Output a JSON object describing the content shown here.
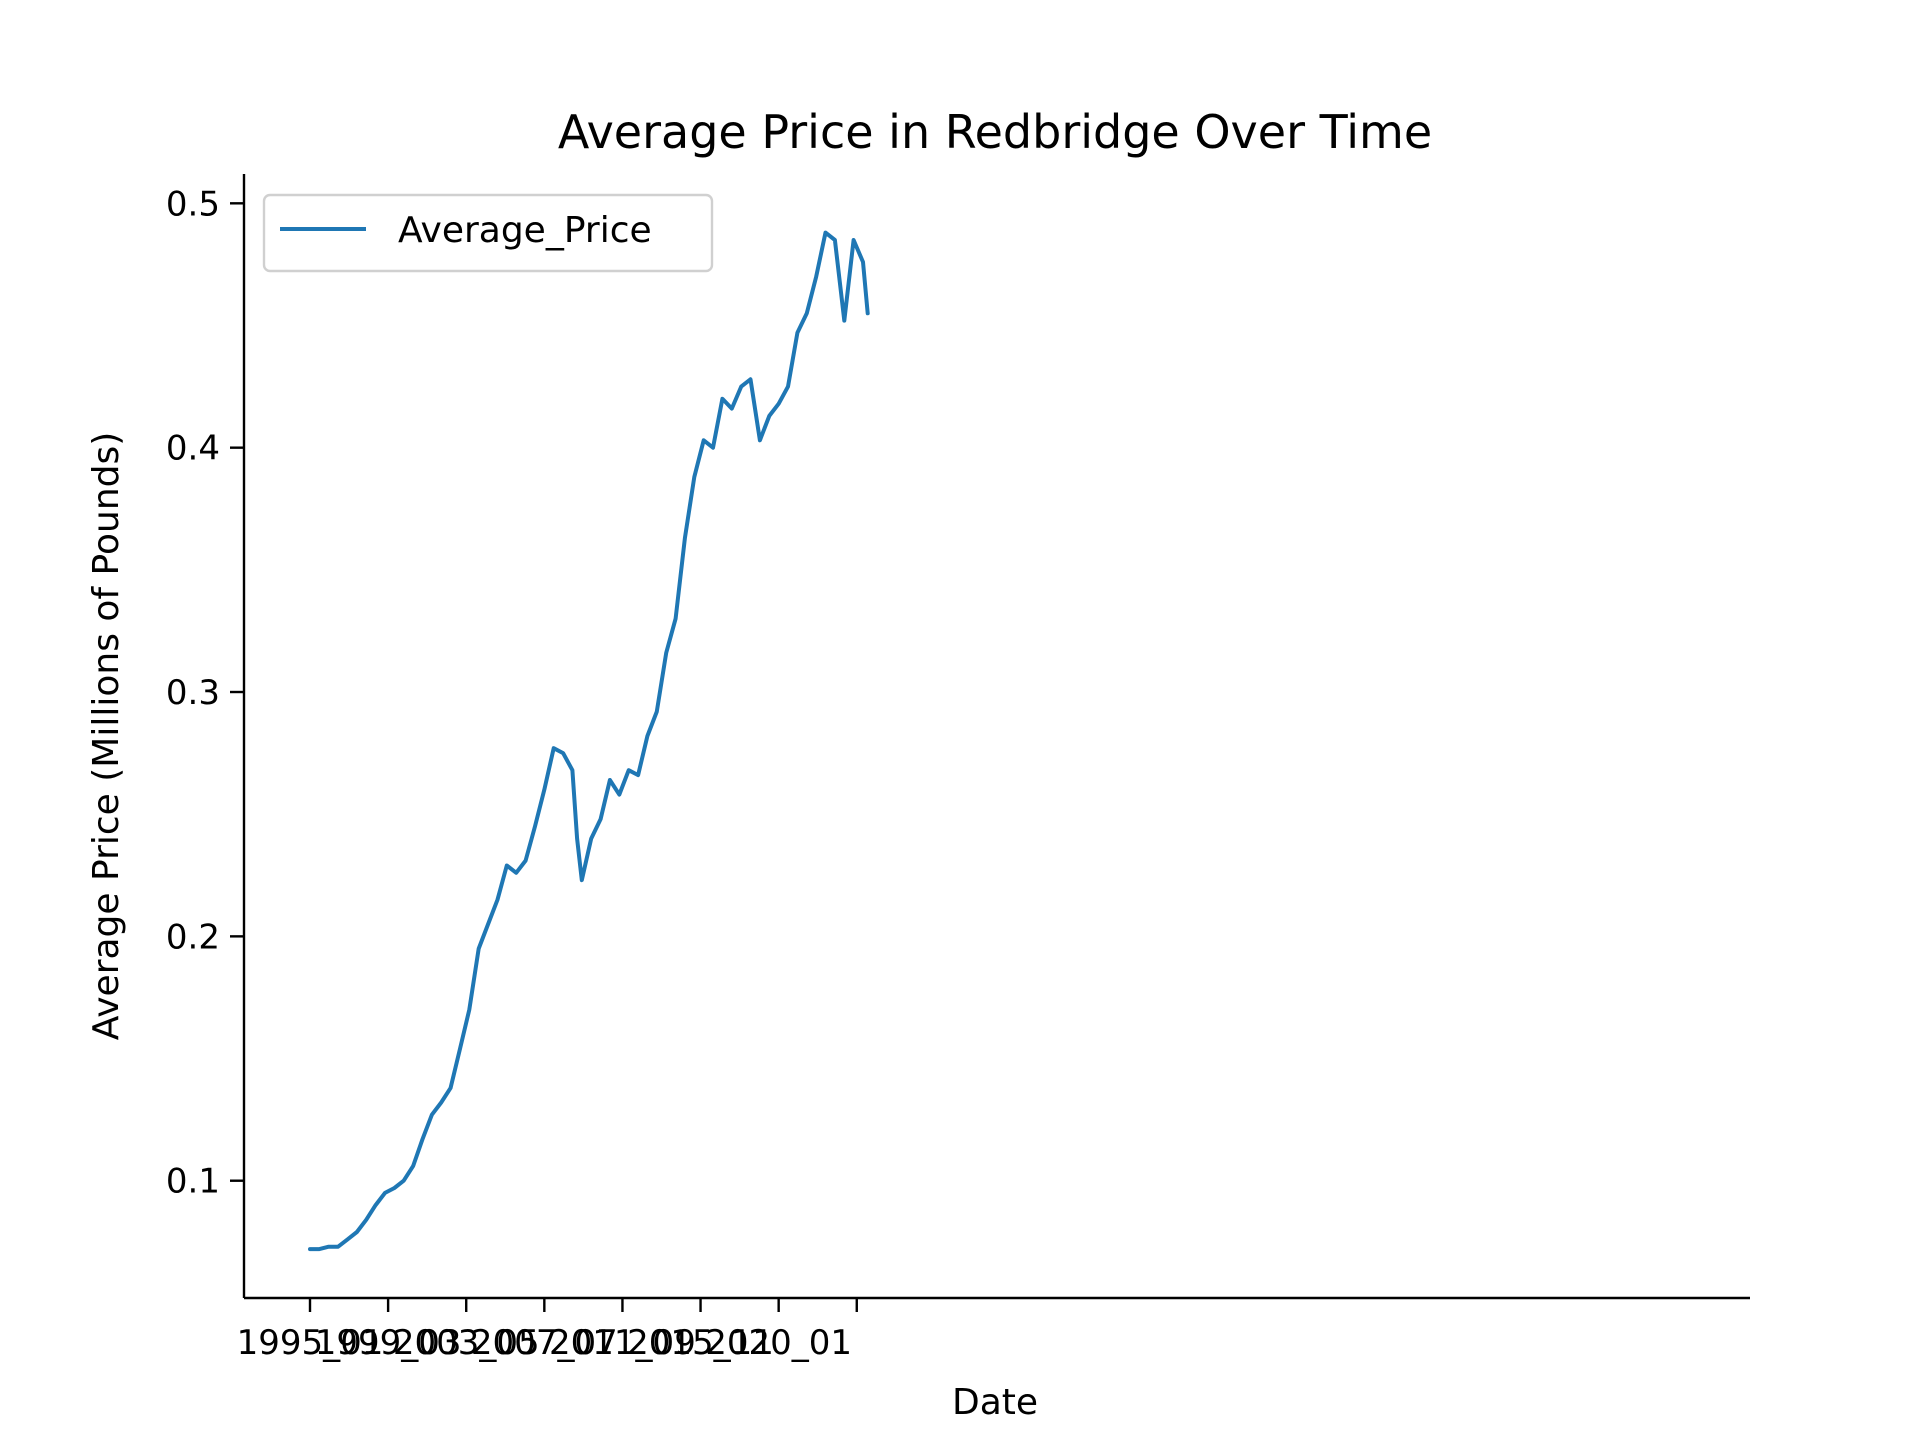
{
  "chart_data": {
    "type": "line",
    "title": "Average Price in Redbridge Over Time",
    "xlabel": "Date",
    "ylabel": "Average Price (Millions of Pounds)",
    "x_tick_labels": [
      "1995_01",
      "1999_03",
      "2003_05",
      "2007_07",
      "2011_09",
      "2015_11",
      "2020_01"
    ],
    "y_ticks": [
      "0.1",
      "0.2",
      "0.3",
      "0.4",
      "0.5"
    ],
    "ylim": [
      0.052,
      0.512
    ],
    "legend_position": "upper-left",
    "grid": false,
    "line_color": "#1f77b4",
    "series": [
      {
        "name": "Average_Price",
        "points": [
          [
            "1995-01",
            0.072
          ],
          [
            "1995-07",
            0.072
          ],
          [
            "1996-01",
            0.073
          ],
          [
            "1996-07",
            0.073
          ],
          [
            "1997-01",
            0.076
          ],
          [
            "1997-07",
            0.079
          ],
          [
            "1998-01",
            0.084
          ],
          [
            "1998-07",
            0.09
          ],
          [
            "1999-01",
            0.095
          ],
          [
            "1999-07",
            0.097
          ],
          [
            "2000-01",
            0.1
          ],
          [
            "2000-07",
            0.106
          ],
          [
            "2001-01",
            0.117
          ],
          [
            "2001-07",
            0.127
          ],
          [
            "2002-01",
            0.132
          ],
          [
            "2002-07",
            0.138
          ],
          [
            "2003-01",
            0.154
          ],
          [
            "2003-07",
            0.17
          ],
          [
            "2004-01",
            0.195
          ],
          [
            "2004-07",
            0.205
          ],
          [
            "2005-01",
            0.215
          ],
          [
            "2005-07",
            0.229
          ],
          [
            "2006-01",
            0.226
          ],
          [
            "2006-07",
            0.231
          ],
          [
            "2007-01",
            0.245
          ],
          [
            "2007-07",
            0.26
          ],
          [
            "2008-01",
            0.277
          ],
          [
            "2008-07",
            0.275
          ],
          [
            "2009-01",
            0.268
          ],
          [
            "2009-04",
            0.24
          ],
          [
            "2009-07",
            0.223
          ],
          [
            "2010-01",
            0.24
          ],
          [
            "2010-07",
            0.248
          ],
          [
            "2011-01",
            0.264
          ],
          [
            "2011-07",
            0.258
          ],
          [
            "2012-01",
            0.268
          ],
          [
            "2012-07",
            0.266
          ],
          [
            "2013-01",
            0.282
          ],
          [
            "2013-07",
            0.292
          ],
          [
            "2014-01",
            0.316
          ],
          [
            "2014-07",
            0.33
          ],
          [
            "2015-01",
            0.363
          ],
          [
            "2015-07",
            0.388
          ],
          [
            "2016-01",
            0.403
          ],
          [
            "2016-07",
            0.4
          ],
          [
            "2017-01",
            0.42
          ],
          [
            "2017-07",
            0.416
          ],
          [
            "2018-01",
            0.425
          ],
          [
            "2018-07",
            0.428
          ],
          [
            "2019-01",
            0.403
          ],
          [
            "2019-07",
            0.413
          ],
          [
            "2020-01",
            0.418
          ],
          [
            "2020-07",
            0.425
          ],
          [
            "2021-01",
            0.447
          ],
          [
            "2021-07",
            0.455
          ],
          [
            "2022-01",
            0.47
          ],
          [
            "2022-07",
            0.488
          ],
          [
            "2023-01",
            0.485
          ],
          [
            "2023-07",
            0.452
          ],
          [
            "2024-01",
            0.485
          ],
          [
            "2024-07",
            0.476
          ],
          [
            "2024-10",
            0.455
          ]
        ]
      }
    ]
  }
}
